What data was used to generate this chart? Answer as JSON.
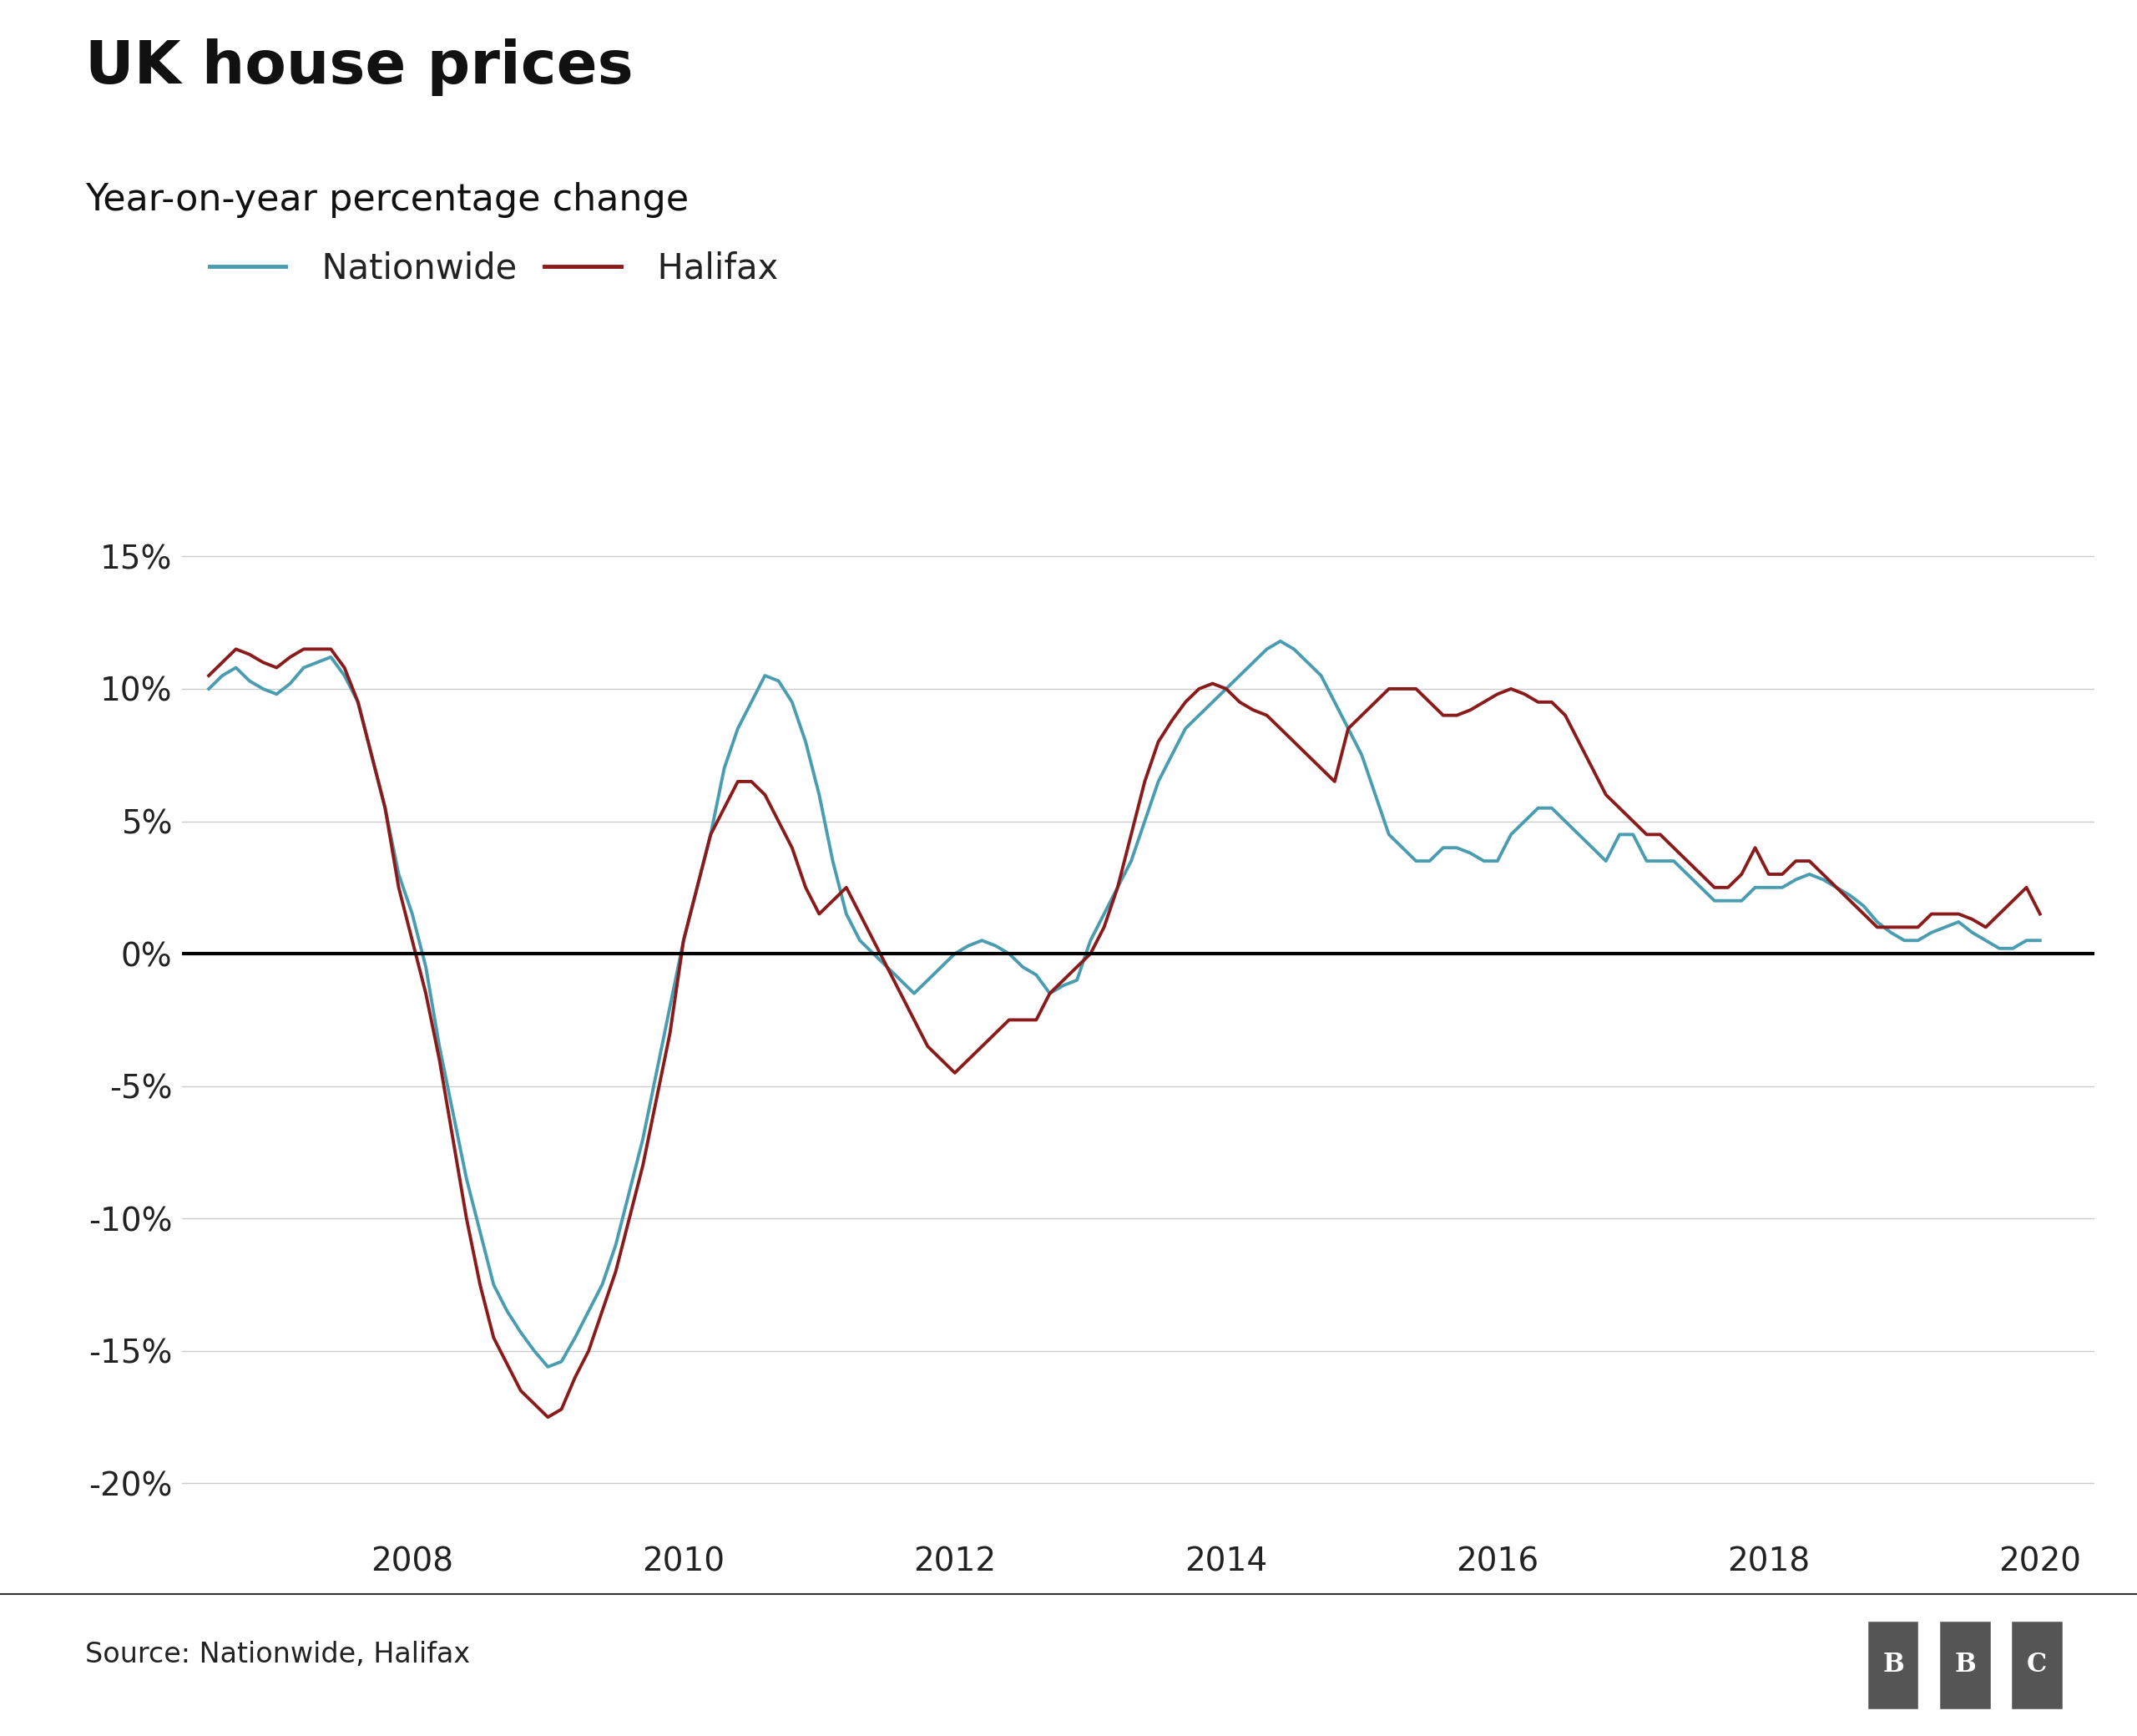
{
  "title": "UK house prices",
  "subtitle": "Year-on-year percentage change",
  "source_text": "Source: Nationwide, Halifax",
  "nationwide_color": "#4a9db0",
  "halifax_color": "#8b1a1a",
  "zero_line_color": "#000000",
  "grid_color": "#cccccc",
  "background_color": "#ffffff",
  "title_fontsize": 52,
  "subtitle_fontsize": 32,
  "tick_fontsize": 28,
  "legend_fontsize": 30,
  "source_fontsize": 24,
  "ylim": [
    -22,
    17
  ],
  "yticks": [
    -20,
    -15,
    -10,
    -5,
    0,
    5,
    10,
    15
  ],
  "xticks": [
    2008,
    2010,
    2012,
    2014,
    2016,
    2018,
    2020
  ],
  "xlim": [
    2006.3,
    2020.4
  ],
  "nationwide": {
    "dates": [
      2006.5,
      2006.6,
      2006.7,
      2006.8,
      2006.9,
      2007.0,
      2007.1,
      2007.2,
      2007.3,
      2007.4,
      2007.5,
      2007.6,
      2007.7,
      2007.8,
      2007.9,
      2008.0,
      2008.1,
      2008.2,
      2008.3,
      2008.4,
      2008.5,
      2008.6,
      2008.7,
      2008.8,
      2008.9,
      2009.0,
      2009.1,
      2009.2,
      2009.3,
      2009.4,
      2009.5,
      2009.6,
      2009.7,
      2009.8,
      2009.9,
      2010.0,
      2010.1,
      2010.2,
      2010.3,
      2010.4,
      2010.5,
      2010.6,
      2010.7,
      2010.8,
      2010.9,
      2011.0,
      2011.1,
      2011.2,
      2011.3,
      2011.4,
      2011.5,
      2011.6,
      2011.7,
      2011.8,
      2011.9,
      2012.0,
      2012.1,
      2012.2,
      2012.3,
      2012.4,
      2012.5,
      2012.6,
      2012.7,
      2012.8,
      2012.9,
      2013.0,
      2013.1,
      2013.2,
      2013.3,
      2013.4,
      2013.5,
      2013.6,
      2013.7,
      2013.8,
      2013.9,
      2014.0,
      2014.1,
      2014.2,
      2014.3,
      2014.4,
      2014.5,
      2014.6,
      2014.7,
      2014.8,
      2014.9,
      2015.0,
      2015.1,
      2015.2,
      2015.3,
      2015.4,
      2015.5,
      2015.6,
      2015.7,
      2015.8,
      2015.9,
      2016.0,
      2016.1,
      2016.2,
      2016.3,
      2016.4,
      2016.5,
      2016.6,
      2016.7,
      2016.8,
      2016.9,
      2017.0,
      2017.1,
      2017.2,
      2017.3,
      2017.4,
      2017.5,
      2017.6,
      2017.7,
      2017.8,
      2017.9,
      2018.0,
      2018.1,
      2018.2,
      2018.3,
      2018.4,
      2018.5,
      2018.6,
      2018.7,
      2018.8,
      2018.9,
      2019.0,
      2019.1,
      2019.2,
      2019.3,
      2019.4,
      2019.5,
      2019.6,
      2019.7,
      2019.8,
      2019.9,
      2020.0
    ],
    "values": [
      10.0,
      10.5,
      10.8,
      10.3,
      10.0,
      9.8,
      10.2,
      10.8,
      11.0,
      11.2,
      10.5,
      9.5,
      7.5,
      5.5,
      3.0,
      1.5,
      -0.5,
      -3.5,
      -6.0,
      -8.5,
      -10.5,
      -12.5,
      -13.5,
      -14.3,
      -15.0,
      -15.6,
      -15.4,
      -14.5,
      -13.5,
      -12.5,
      -11.0,
      -9.0,
      -7.0,
      -4.5,
      -2.0,
      0.5,
      2.5,
      4.5,
      7.0,
      8.5,
      9.5,
      10.5,
      10.3,
      9.5,
      8.0,
      6.0,
      3.5,
      1.5,
      0.5,
      0.0,
      -0.5,
      -1.0,
      -1.5,
      -1.0,
      -0.5,
      0.0,
      0.3,
      0.5,
      0.3,
      0.0,
      -0.5,
      -0.8,
      -1.5,
      -1.2,
      -1.0,
      0.5,
      1.5,
      2.5,
      3.5,
      5.0,
      6.5,
      7.5,
      8.5,
      9.0,
      9.5,
      10.0,
      10.5,
      11.0,
      11.5,
      11.8,
      11.5,
      11.0,
      10.5,
      9.5,
      8.5,
      7.5,
      6.0,
      4.5,
      4.0,
      3.5,
      3.5,
      4.0,
      4.0,
      3.8,
      3.5,
      3.5,
      4.5,
      5.0,
      5.5,
      5.5,
      5.0,
      4.5,
      4.0,
      3.5,
      4.5,
      4.5,
      3.5,
      3.5,
      3.5,
      3.0,
      2.5,
      2.0,
      2.0,
      2.0,
      2.5,
      2.5,
      2.5,
      2.8,
      3.0,
      2.8,
      2.5,
      2.2,
      1.8,
      1.2,
      0.8,
      0.5,
      0.5,
      0.8,
      1.0,
      1.2,
      0.8,
      0.5,
      0.2,
      0.2,
      0.5,
      0.5
    ]
  },
  "halifax": {
    "dates": [
      2006.5,
      2006.6,
      2006.7,
      2006.8,
      2006.9,
      2007.0,
      2007.1,
      2007.2,
      2007.3,
      2007.4,
      2007.5,
      2007.6,
      2007.7,
      2007.8,
      2007.9,
      2008.0,
      2008.1,
      2008.2,
      2008.3,
      2008.4,
      2008.5,
      2008.6,
      2008.7,
      2008.8,
      2008.9,
      2009.0,
      2009.1,
      2009.2,
      2009.3,
      2009.4,
      2009.5,
      2009.6,
      2009.7,
      2009.8,
      2009.9,
      2010.0,
      2010.1,
      2010.2,
      2010.3,
      2010.4,
      2010.5,
      2010.6,
      2010.7,
      2010.8,
      2010.9,
      2011.0,
      2011.1,
      2011.2,
      2011.3,
      2011.4,
      2011.5,
      2011.6,
      2011.7,
      2011.8,
      2011.9,
      2012.0,
      2012.1,
      2012.2,
      2012.3,
      2012.4,
      2012.5,
      2012.6,
      2012.7,
      2012.8,
      2012.9,
      2013.0,
      2013.1,
      2013.2,
      2013.3,
      2013.4,
      2013.5,
      2013.6,
      2013.7,
      2013.8,
      2013.9,
      2014.0,
      2014.1,
      2014.2,
      2014.3,
      2014.4,
      2014.5,
      2014.6,
      2014.7,
      2014.8,
      2014.9,
      2015.0,
      2015.1,
      2015.2,
      2015.3,
      2015.4,
      2015.5,
      2015.6,
      2015.7,
      2015.8,
      2015.9,
      2016.0,
      2016.1,
      2016.2,
      2016.3,
      2016.4,
      2016.5,
      2016.6,
      2016.7,
      2016.8,
      2016.9,
      2017.0,
      2017.1,
      2017.2,
      2017.3,
      2017.4,
      2017.5,
      2017.6,
      2017.7,
      2017.8,
      2017.9,
      2018.0,
      2018.1,
      2018.2,
      2018.3,
      2018.4,
      2018.5,
      2018.6,
      2018.7,
      2018.8,
      2018.9,
      2019.0,
      2019.1,
      2019.2,
      2019.3,
      2019.4,
      2019.5,
      2019.6,
      2019.7,
      2019.8,
      2019.9,
      2020.0
    ],
    "values": [
      10.5,
      11.0,
      11.5,
      11.3,
      11.0,
      10.8,
      11.2,
      11.5,
      11.5,
      11.5,
      10.8,
      9.5,
      7.5,
      5.5,
      2.5,
      0.5,
      -1.5,
      -4.0,
      -7.0,
      -10.0,
      -12.5,
      -14.5,
      -15.5,
      -16.5,
      -17.0,
      -17.5,
      -17.2,
      -16.0,
      -15.0,
      -13.5,
      -12.0,
      -10.0,
      -8.0,
      -5.5,
      -3.0,
      0.5,
      2.5,
      4.5,
      5.5,
      6.5,
      6.5,
      6.0,
      5.0,
      4.0,
      2.5,
      1.5,
      2.0,
      2.5,
      1.5,
      0.5,
      -0.5,
      -1.5,
      -2.5,
      -3.5,
      -4.0,
      -4.5,
      -4.0,
      -3.5,
      -3.0,
      -2.5,
      -2.5,
      -2.5,
      -1.5,
      -1.0,
      -0.5,
      0.0,
      1.0,
      2.5,
      4.5,
      6.5,
      8.0,
      8.8,
      9.5,
      10.0,
      10.2,
      10.0,
      9.5,
      9.2,
      9.0,
      8.5,
      8.0,
      7.5,
      7.0,
      6.5,
      8.5,
      9.0,
      9.5,
      10.0,
      10.0,
      10.0,
      9.5,
      9.0,
      9.0,
      9.2,
      9.5,
      9.8,
      10.0,
      9.8,
      9.5,
      9.5,
      9.0,
      8.0,
      7.0,
      6.0,
      5.5,
      5.0,
      4.5,
      4.5,
      4.0,
      3.5,
      3.0,
      2.5,
      2.5,
      3.0,
      4.0,
      3.0,
      3.0,
      3.5,
      3.5,
      3.0,
      2.5,
      2.0,
      1.5,
      1.0,
      1.0,
      1.0,
      1.0,
      1.5,
      1.5,
      1.5,
      1.3,
      1.0,
      1.5,
      2.0,
      2.5,
      1.5
    ]
  }
}
